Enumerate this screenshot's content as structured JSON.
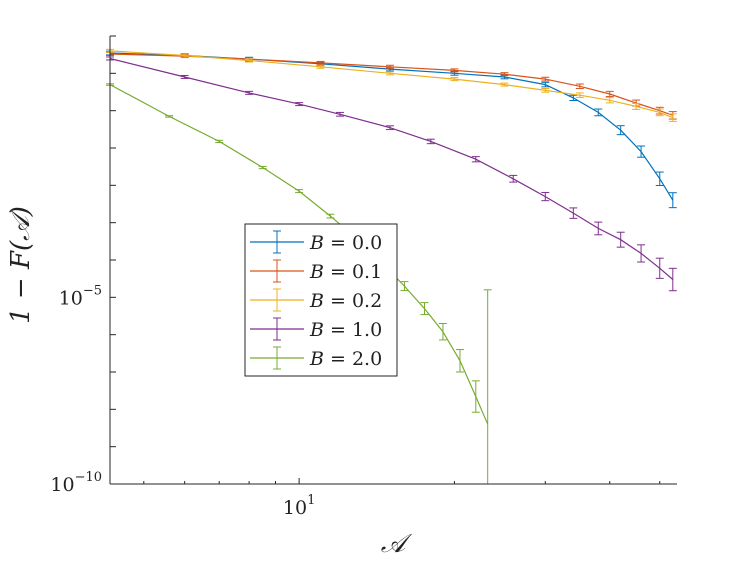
{
  "chart_data": {
    "type": "line",
    "title": "",
    "xlabel": "𝒜",
    "ylabel": "1 − F(𝒜)",
    "xscale": "log",
    "yscale": "log",
    "xlim": [
      4.3,
      54
    ],
    "ylim": [
      1e-10,
      100
    ],
    "x_ticks": [
      {
        "value": 10,
        "base": "10",
        "exp": "1"
      }
    ],
    "y_ticks": [
      {
        "value": 1e-05,
        "base": "10",
        "exp": "−5"
      },
      {
        "value": 1e-10,
        "base": "10",
        "exp": "−10"
      }
    ],
    "grid": false,
    "legend_position": "center-left",
    "series": [
      {
        "name": "B = 0.0",
        "label_var": "B",
        "label_val": "0.0",
        "color": "#0072BD",
        "x": [
          4.3,
          6,
          8,
          11,
          15,
          20,
          25,
          30,
          34,
          38,
          42,
          46,
          50,
          53
        ],
        "y": [
          35,
          30,
          24,
          18,
          13,
          10,
          8,
          5,
          2.2,
          0.9,
          0.3,
          0.08,
          0.015,
          0.004
        ],
        "err": [
          0.05,
          0.05,
          0.05,
          0.05,
          0.05,
          0.05,
          0.05,
          0.06,
          0.07,
          0.09,
          0.12,
          0.15,
          0.18,
          0.2
        ]
      },
      {
        "name": "B = 0.1",
        "label_var": "B",
        "label_val": "0.1",
        "color": "#D95319",
        "x": [
          4.3,
          6,
          8,
          11,
          15,
          20,
          25,
          30,
          35,
          40,
          45,
          50,
          53
        ],
        "y": [
          33,
          29,
          24,
          19,
          15,
          12,
          9.5,
          7,
          4.5,
          2.8,
          1.6,
          1.0,
          0.75
        ],
        "err": [
          0.04,
          0.04,
          0.04,
          0.04,
          0.04,
          0.04,
          0.04,
          0.05,
          0.06,
          0.07,
          0.08,
          0.09,
          0.1
        ]
      },
      {
        "name": "B = 0.2",
        "label_var": "B",
        "label_val": "0.2",
        "color": "#EDB120",
        "x": [
          4.3,
          6,
          8,
          11,
          15,
          20,
          25,
          30,
          35,
          40,
          45,
          50,
          53
        ],
        "y": [
          40,
          30,
          22,
          15,
          10,
          7,
          5,
          3.5,
          2.6,
          1.9,
          1.3,
          0.9,
          0.65
        ],
        "err": [
          0.04,
          0.04,
          0.04,
          0.04,
          0.04,
          0.04,
          0.04,
          0.05,
          0.06,
          0.07,
          0.08,
          0.09,
          0.1
        ]
      },
      {
        "name": "B = 1.0",
        "label_var": "B",
        "label_val": "1.0",
        "color": "#7E2F8E",
        "x": [
          4.3,
          6,
          8,
          10,
          12,
          15,
          18,
          22,
          26,
          30,
          34,
          38,
          42,
          46,
          50,
          53
        ],
        "y": [
          25,
          8,
          3,
          1.5,
          0.8,
          0.35,
          0.15,
          0.05,
          0.015,
          0.005,
          0.0018,
          0.0007,
          0.00035,
          0.00015,
          6e-05,
          3e-05
        ],
        "err": [
          0.04,
          0.04,
          0.04,
          0.04,
          0.05,
          0.05,
          0.06,
          0.07,
          0.09,
          0.11,
          0.14,
          0.17,
          0.2,
          0.23,
          0.27,
          0.3
        ]
      },
      {
        "name": "B = 2.0",
        "label_var": "B",
        "label_val": "2.0",
        "color": "#77AC30",
        "x": [
          4.3,
          5.6,
          7,
          8.5,
          10,
          11.5,
          13,
          14.5,
          16,
          17.5,
          19,
          20.5,
          22,
          23.2
        ],
        "y": [
          5,
          0.7,
          0.15,
          0.03,
          0.007,
          0.0015,
          0.00035,
          8e-05,
          2e-05,
          5e-06,
          1.2e-06,
          2e-07,
          2.2e-08,
          4e-09
        ],
        "err": [
          0.02,
          0.02,
          0.03,
          0.03,
          0.04,
          0.05,
          0.07,
          0.09,
          0.12,
          0.16,
          0.22,
          0.3,
          0.42,
          3.6
        ]
      }
    ]
  }
}
